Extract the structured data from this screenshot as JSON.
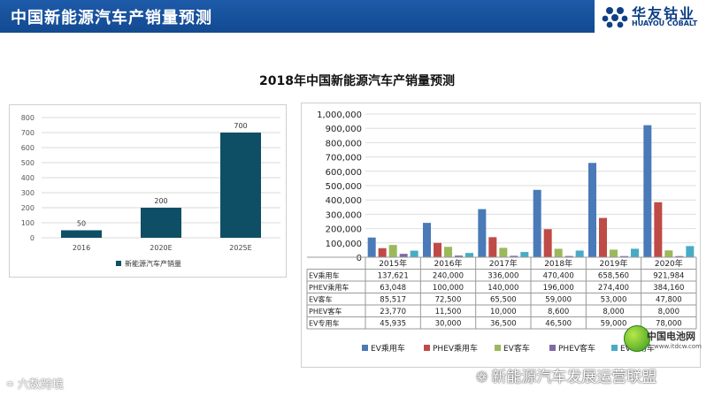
{
  "header": {
    "title": "中国新能源汽车产销量预测"
  },
  "logo": {
    "cn": "华友钴业",
    "en": "HUAYOU COBALT"
  },
  "main_title": "2018年中国新能源汽车产销量预测",
  "watermarks": {
    "left": "六数跨境",
    "right": "新能源汽车发展运营联盟",
    "site_name": "中国电池网",
    "site_url": "www.itdcw.com"
  },
  "colors": {
    "header_bg": "#1d5aa8",
    "left_bar": "#0e4f66",
    "ev_car": "#4a7ab7",
    "phev_car": "#bf4b47",
    "ev_bus": "#9bb95a",
    "phev_bus": "#7f6aa3",
    "ev_special": "#48abc6"
  },
  "chart_data": [
    {
      "type": "bar",
      "categories": [
        "2016",
        "2020E",
        "2025E"
      ],
      "series": [
        {
          "name": "新能源汽车产销量",
          "values": [
            50,
            200,
            700
          ]
        }
      ],
      "data_labels": [
        "50",
        "200",
        "700"
      ],
      "yticks": [
        "0",
        "100",
        "200",
        "300",
        "400",
        "500",
        "600",
        "700",
        "800"
      ],
      "ylim": [
        0,
        800
      ],
      "legend": "bottom",
      "grid": true
    },
    {
      "type": "bar",
      "categories": [
        "2015年",
        "2016年",
        "2017年",
        "2018年",
        "2019年",
        "2020年"
      ],
      "yticks": [
        "0",
        "100,000",
        "200,000",
        "300,000",
        "400,000",
        "500,000",
        "600,000",
        "700,000",
        "800,000",
        "900,000",
        "1,000,000"
      ],
      "ylim": [
        0,
        1000000
      ],
      "legend": "bottom",
      "grid": true,
      "series": [
        {
          "name": "EV乘用车",
          "values": [
            137621,
            240000,
            336000,
            470400,
            658560,
            921984
          ],
          "labels": [
            "137,621",
            "240,000",
            "336,000",
            "470,400",
            "658,560",
            "921,984"
          ]
        },
        {
          "name": "PHEV乘用车",
          "values": [
            63048,
            100000,
            140000,
            196000,
            274400,
            384160
          ],
          "labels": [
            "63,048",
            "100,000",
            "140,000",
            "196,000",
            "274,400",
            "384,160"
          ]
        },
        {
          "name": "EV客车",
          "values": [
            85517,
            72500,
            65500,
            59000,
            53000,
            47800
          ],
          "labels": [
            "85,517",
            "72,500",
            "65,500",
            "59,000",
            "53,000",
            "47,800"
          ]
        },
        {
          "name": "PHEV客车",
          "values": [
            23770,
            11500,
            10000,
            8600,
            8000,
            8000
          ],
          "labels": [
            "23,770",
            "11,500",
            "10,000",
            "8,600",
            "8,000",
            "8,000"
          ]
        },
        {
          "name": "EV专用车",
          "values": [
            45935,
            30000,
            36500,
            46500,
            59000,
            78000
          ],
          "labels": [
            "45,935",
            "30,000",
            "36,500",
            "46,500",
            "59,000",
            "78,000"
          ]
        }
      ]
    }
  ]
}
